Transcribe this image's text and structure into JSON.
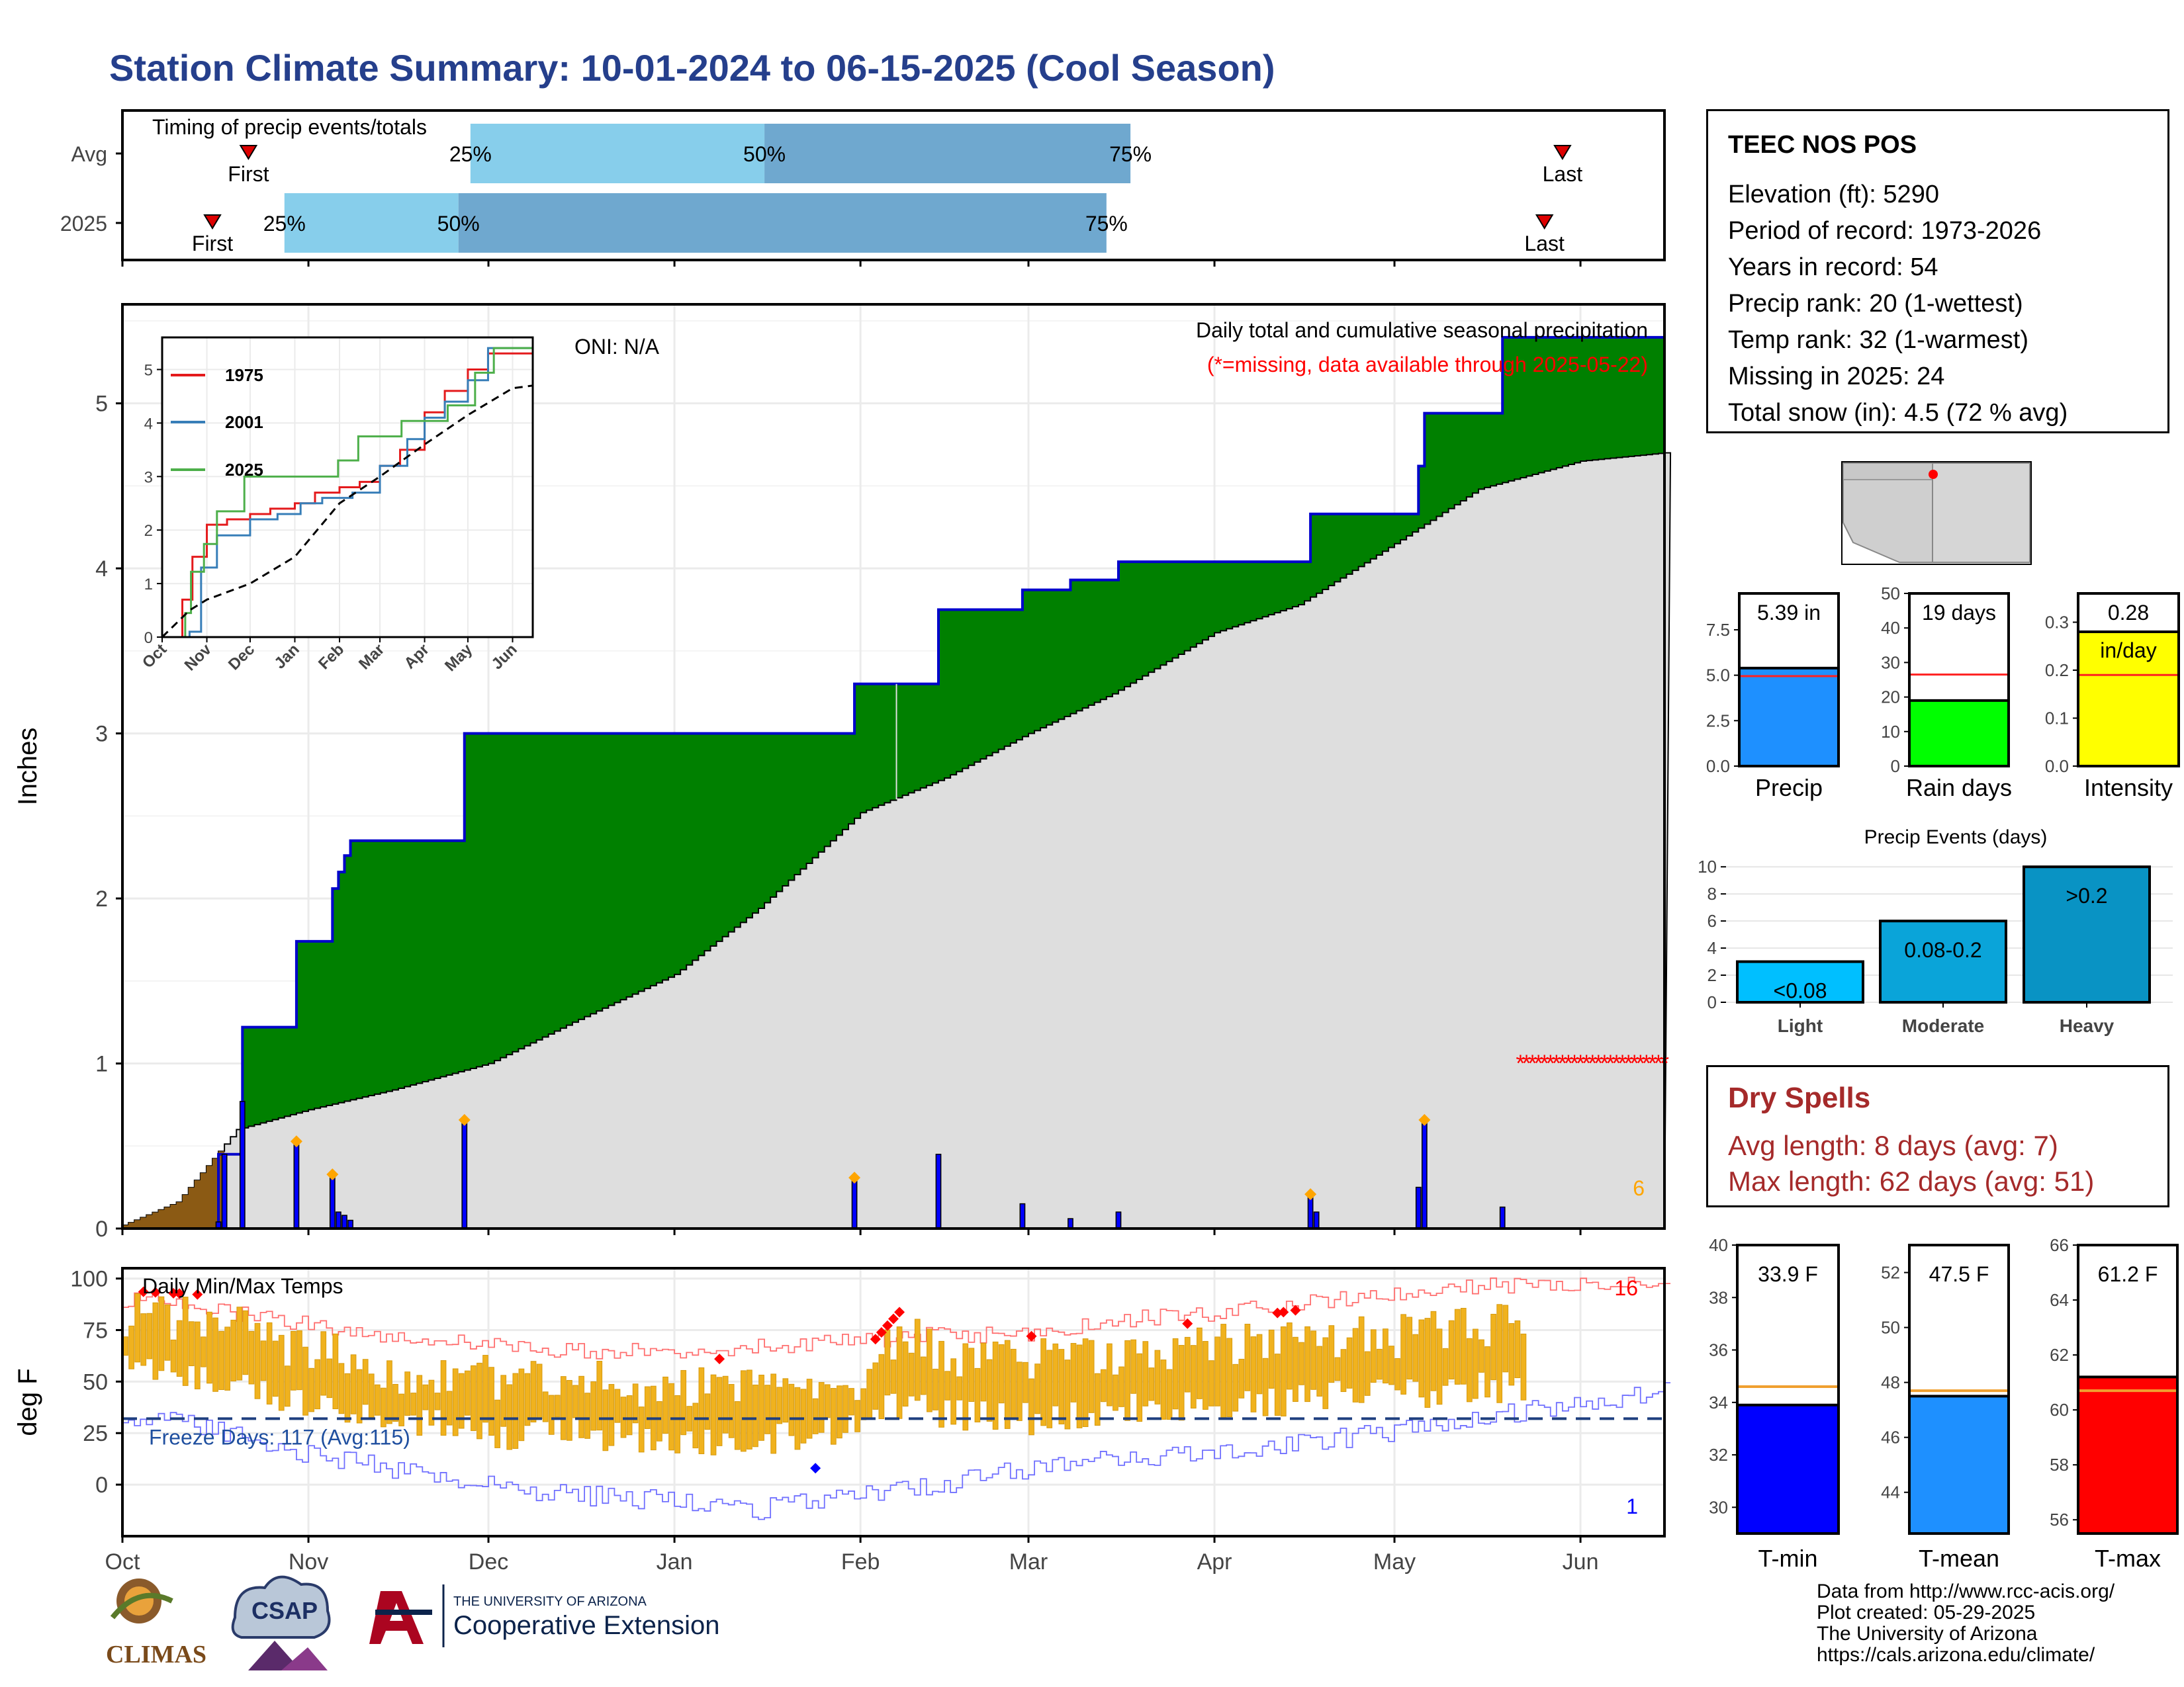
{
  "page": {
    "title": "Station Climate Summary: 10-01-2024 to 06-15-2025 (Cool Season)"
  },
  "station": {
    "name": "TEEC NOS POS",
    "lines": [
      "Elevation (ft): 5290",
      "Period of record: 1973-2026",
      "Years in record: 54",
      "Precip rank: 20 (1-wettest)",
      "Temp rank: 32 (1-warmest)",
      "Missing in 2025: 24",
      "Total snow (in): 4.5 (72 % avg)"
    ]
  },
  "dry_spells": {
    "title": "Dry Spells",
    "avg": "Avg length: 8 days (avg: 7)",
    "max": "Max length: 62 days (avg: 51)"
  },
  "credits": [
    "Data from http://www.rcc-acis.org/",
    "Plot created: 05-29-2025",
    "The University of Arizona",
    "https://cals.arizona.edu/climate/"
  ],
  "logos": {
    "climas": "CLIMAS",
    "csap": "CSAP",
    "ua_top": "THE UNIVERSITY OF ARIZONA",
    "ua_bottom": "Cooperative Extension"
  },
  "colors": {
    "title": "#253f8c",
    "cum_2025_fill": "#008000",
    "cum_avg_fill": "#dedede",
    "daily_bar": "#0000ff",
    "temp_bar": "#f0b21e",
    "dry_spells": "#a52a2a",
    "missing": "#ff0000"
  },
  "chart_data": [
    {
      "type": "bar",
      "id": "timing",
      "title": "Timing of precip events/totals",
      "rows": [
        {
          "label": "Avg",
          "first": "2024-10-22",
          "p25": "2024-11-28",
          "p50": "2025-01-16",
          "p75": "2025-03-18",
          "last": "2025-05-29"
        },
        {
          "label": "2025",
          "first": "2024-10-16",
          "p25": "2024-10-28",
          "p50": "2024-11-26",
          "p75": "2025-03-14",
          "last": "2025-05-26"
        }
      ],
      "markers": {
        "first": "First",
        "last": "Last",
        "p25": "25%",
        "p50": "50%",
        "p75": "75%"
      }
    },
    {
      "type": "area",
      "id": "precip",
      "title": "Daily total and cumulative seasonal precipitation",
      "subtitle": "(*=missing, data available through 2025-05-22)",
      "oni": "ONI: N/A",
      "ylabel": "Inches",
      "ylim": [
        0,
        5.6
      ],
      "yticks": [
        0,
        1,
        2,
        3,
        4,
        5
      ],
      "x_months": [
        "Oct",
        "Nov",
        "Dec",
        "Jan",
        "Feb",
        "Mar",
        "Apr",
        "May",
        "Jun"
      ],
      "x_start": "2024-10-01",
      "x_end": "2025-06-15",
      "cum_2025_steps": [
        [
          "2024-10-01",
          0
        ],
        [
          "2024-10-17",
          0.45
        ],
        [
          "2024-10-21",
          1.22
        ],
        [
          "2024-10-30",
          1.74
        ],
        [
          "2024-11-05",
          2.06
        ],
        [
          "2024-11-06",
          2.16
        ],
        [
          "2024-11-07",
          2.26
        ],
        [
          "2024-11-08",
          2.35
        ],
        [
          "2024-11-27",
          3.0
        ],
        [
          "2025-01-31",
          3.3
        ],
        [
          "2025-02-14",
          3.75
        ],
        [
          "2025-02-28",
          3.87
        ],
        [
          "2025-03-08",
          3.93
        ],
        [
          "2025-03-16",
          4.04
        ],
        [
          "2025-04-17",
          4.33
        ],
        [
          "2025-05-05",
          4.62
        ],
        [
          "2025-05-06",
          4.94
        ],
        [
          "2025-05-19",
          5.4
        ],
        [
          "2025-06-15",
          5.4
        ]
      ],
      "cum_avg": [
        [
          "2024-10-01",
          0.02
        ],
        [
          "2024-10-10",
          0.16
        ],
        [
          "2024-10-20",
          0.6
        ],
        [
          "2024-11-01",
          0.72
        ],
        [
          "2024-11-15",
          0.84
        ],
        [
          "2024-12-01",
          1.0
        ],
        [
          "2024-12-15",
          1.25
        ],
        [
          "2025-01-01",
          1.54
        ],
        [
          "2025-01-15",
          1.94
        ],
        [
          "2025-02-01",
          2.52
        ],
        [
          "2025-02-15",
          2.73
        ],
        [
          "2025-03-01",
          3.0
        ],
        [
          "2025-03-15",
          3.24
        ],
        [
          "2025-04-01",
          3.61
        ],
        [
          "2025-04-15",
          3.78
        ],
        [
          "2025-05-01",
          4.15
        ],
        [
          "2025-05-15",
          4.48
        ],
        [
          "2025-06-01",
          4.65
        ],
        [
          "2025-06-15",
          4.7
        ]
      ],
      "daily": [
        [
          "2024-10-17",
          0.04
        ],
        [
          "2024-10-18",
          0.45
        ],
        [
          "2024-10-21",
          0.77
        ],
        [
          "2024-10-30",
          0.52
        ],
        [
          "2024-11-05",
          0.32
        ],
        [
          "2024-11-06",
          0.1
        ],
        [
          "2024-11-07",
          0.08
        ],
        [
          "2024-11-08",
          0.05
        ],
        [
          "2024-11-27",
          0.65
        ],
        [
          "2025-01-31",
          0.3
        ],
        [
          "2025-02-14",
          0.45
        ],
        [
          "2025-02-28",
          0.15
        ],
        [
          "2025-03-08",
          0.06
        ],
        [
          "2025-03-16",
          0.1
        ],
        [
          "2025-04-17",
          0.2
        ],
        [
          "2025-04-18",
          0.1
        ],
        [
          "2025-05-05",
          0.25
        ],
        [
          "2025-05-06",
          0.65
        ],
        [
          "2025-05-19",
          0.13
        ]
      ],
      "daily_markers": [
        "2024-10-30",
        "2024-11-05",
        "2024-11-27",
        "2025-01-31",
        "2025-04-17",
        "2025-05-06"
      ],
      "missing_range": [
        "2025-05-22",
        "2025-06-15"
      ],
      "missing_count": "6",
      "inset": {
        "series": [
          {
            "name": "1975",
            "color": "#e41a1c",
            "values": [
              [
                "2024-10-01",
                0
              ],
              [
                "2024-10-15",
                0.7
              ],
              [
                "2024-10-22",
                1.5
              ],
              [
                "2024-11-01",
                2.1
              ],
              [
                "2024-11-15",
                2.2
              ],
              [
                "2024-12-01",
                2.3
              ],
              [
                "2024-12-15",
                2.4
              ],
              [
                "2025-01-01",
                2.5
              ],
              [
                "2025-01-15",
                2.7
              ],
              [
                "2025-02-01",
                2.8
              ],
              [
                "2025-02-15",
                2.9
              ],
              [
                "2025-03-01",
                3.2
              ],
              [
                "2025-03-15",
                3.5
              ],
              [
                "2025-04-01",
                4.2
              ],
              [
                "2025-04-15",
                4.6
              ],
              [
                "2025-05-01",
                5.0
              ],
              [
                "2025-05-15",
                5.3
              ],
              [
                "2025-06-15",
                5.5
              ]
            ]
          },
          {
            "name": "2001",
            "color": "#377eb8",
            "values": [
              [
                "2024-10-01",
                0
              ],
              [
                "2024-10-20",
                0.1
              ],
              [
                "2024-10-28",
                1.3
              ],
              [
                "2024-11-08",
                1.9
              ],
              [
                "2024-12-01",
                2.2
              ],
              [
                "2024-12-20",
                2.3
              ],
              [
                "2025-01-05",
                2.5
              ],
              [
                "2025-01-20",
                2.6
              ],
              [
                "2025-02-10",
                2.7
              ],
              [
                "2025-03-01",
                3.2
              ],
              [
                "2025-03-20",
                3.7
              ],
              [
                "2025-04-01",
                4.1
              ],
              [
                "2025-04-15",
                4.4
              ],
              [
                "2025-05-01",
                4.8
              ],
              [
                "2025-05-15",
                5.4
              ],
              [
                "2025-06-15",
                5.5
              ]
            ]
          },
          {
            "name": "2025",
            "color": "#4daf4a",
            "values": [
              [
                "2024-10-01",
                0
              ],
              [
                "2024-10-17",
                0.45
              ],
              [
                "2024-10-21",
                1.22
              ],
              [
                "2024-10-30",
                1.74
              ],
              [
                "2024-11-08",
                2.35
              ],
              [
                "2024-11-27",
                3.0
              ],
              [
                "2025-01-31",
                3.3
              ],
              [
                "2025-02-14",
                3.75
              ],
              [
                "2025-03-16",
                4.04
              ],
              [
                "2025-04-17",
                4.33
              ],
              [
                "2025-05-06",
                4.94
              ],
              [
                "2025-05-19",
                5.4
              ],
              [
                "2025-06-15",
                5.4
              ]
            ]
          }
        ],
        "avg_values": [
          [
            "2024-10-01",
            0
          ],
          [
            "2024-10-20",
            0.5
          ],
          [
            "2024-11-01",
            0.7
          ],
          [
            "2024-12-01",
            1.0
          ],
          [
            "2025-01-01",
            1.5
          ],
          [
            "2025-02-01",
            2.5
          ],
          [
            "2025-03-01",
            3.0
          ],
          [
            "2025-04-01",
            3.6
          ],
          [
            "2025-05-01",
            4.15
          ],
          [
            "2025-06-01",
            4.65
          ],
          [
            "2025-06-15",
            4.7
          ]
        ],
        "ylim": [
          0,
          5.6
        ],
        "yticks": [
          0,
          1,
          2,
          3,
          4,
          5
        ],
        "x_months": [
          "Oct",
          "Nov",
          "Dec",
          "Jan",
          "Feb",
          "Mar",
          "Apr",
          "May",
          "Jun"
        ]
      }
    },
    {
      "type": "bar",
      "id": "temps",
      "title": "Daily Min/Max Temps",
      "ylabel": "deg F",
      "ylim": [
        -25,
        105
      ],
      "yticks": [
        0,
        25,
        50,
        75,
        100
      ],
      "freeze_line": 32,
      "freeze_label": "Freeze Days: 117 (Avg:115)",
      "record_high_count": "16",
      "record_low_count": "1",
      "x_months": [
        "Oct",
        "Nov",
        "Dec",
        "Jan",
        "Feb",
        "Mar",
        "Apr",
        "May",
        "Jun"
      ],
      "data_end": "2025-05-22",
      "max_trend": [
        [
          "2024-10-01",
          82
        ],
        [
          "2024-10-15",
          80
        ],
        [
          "2024-11-01",
          65
        ],
        [
          "2024-11-15",
          55
        ],
        [
          "2024-12-01",
          52
        ],
        [
          "2024-12-15",
          50
        ],
        [
          "2025-01-01",
          48
        ],
        [
          "2025-01-15",
          50
        ],
        [
          "2025-02-01",
          52
        ],
        [
          "2025-02-08",
          75
        ],
        [
          "2025-02-15",
          62
        ],
        [
          "2025-03-01",
          60
        ],
        [
          "2025-03-15",
          64
        ],
        [
          "2025-04-01",
          67
        ],
        [
          "2025-04-15",
          73
        ],
        [
          "2025-05-01",
          72
        ],
        [
          "2025-05-22",
          78
        ]
      ],
      "min_trend": [
        [
          "2024-10-01",
          55
        ],
        [
          "2024-10-15",
          50
        ],
        [
          "2024-11-01",
          38
        ],
        [
          "2024-11-15",
          32
        ],
        [
          "2024-12-01",
          25
        ],
        [
          "2024-12-15",
          25
        ],
        [
          "2025-01-01",
          22
        ],
        [
          "2025-01-15",
          20
        ],
        [
          "2025-02-01",
          30
        ],
        [
          "2025-02-08",
          40
        ],
        [
          "2025-02-15",
          35
        ],
        [
          "2025-03-01",
          32
        ],
        [
          "2025-03-15",
          36
        ],
        [
          "2025-04-01",
          38
        ],
        [
          "2025-04-15",
          42
        ],
        [
          "2025-05-01",
          44
        ],
        [
          "2025-05-22",
          48
        ]
      ],
      "record_max_env": [
        [
          "2024-10-01",
          90
        ],
        [
          "2024-10-15",
          85
        ],
        [
          "2024-11-01",
          78
        ],
        [
          "2024-11-15",
          72
        ],
        [
          "2024-12-01",
          68
        ],
        [
          "2024-12-15",
          65
        ],
        [
          "2025-01-01",
          65
        ],
        [
          "2025-02-01",
          70
        ],
        [
          "2025-02-15",
          73
        ],
        [
          "2025-03-01",
          72
        ],
        [
          "2025-03-15",
          80
        ],
        [
          "2025-04-01",
          83
        ],
        [
          "2025-04-15",
          88
        ],
        [
          "2025-05-01",
          92
        ],
        [
          "2025-05-15",
          96
        ],
        [
          "2025-06-15",
          100
        ]
      ],
      "record_min_env": [
        [
          "2024-10-01",
          33
        ],
        [
          "2024-10-15",
          28
        ],
        [
          "2024-11-01",
          15
        ],
        [
          "2024-11-15",
          8
        ],
        [
          "2024-12-01",
          0
        ],
        [
          "2024-12-15",
          -5
        ],
        [
          "2025-01-01",
          -8
        ],
        [
          "2025-01-15",
          -12
        ],
        [
          "2025-02-01",
          -5
        ],
        [
          "2025-02-15",
          0
        ],
        [
          "2025-03-01",
          8
        ],
        [
          "2025-03-15",
          12
        ],
        [
          "2025-04-01",
          16
        ],
        [
          "2025-04-15",
          20
        ],
        [
          "2025-05-01",
          26
        ],
        [
          "2025-05-15",
          32
        ],
        [
          "2025-06-15",
          45
        ]
      ],
      "record_high_days": [
        "2024-10-04",
        "2024-10-06",
        "2024-10-09",
        "2024-10-10",
        "2024-10-13",
        "2025-01-08",
        "2025-02-03",
        "2025-02-04",
        "2025-02-05",
        "2025-02-06",
        "2025-02-07",
        "2025-03-01",
        "2025-03-27",
        "2025-04-11",
        "2025-04-12",
        "2025-04-14"
      ],
      "record_low_days": [
        "2025-01-24"
      ]
    },
    {
      "type": "bar",
      "id": "totals",
      "panels": [
        {
          "label": "Precip",
          "value_text": "5.39 in",
          "value": 5.39,
          "avg": 4.95,
          "ylim": [
            0,
            9.5
          ],
          "yticks": [
            "0.0",
            "2.5",
            "5.0",
            "7.5"
          ],
          "ytick_vals": [
            0,
            2.5,
            5,
            7.5
          ],
          "color": "#1e90ff"
        },
        {
          "label": "Rain days",
          "value_text": "19 days",
          "value": 19,
          "avg": 26.5,
          "ylim": [
            0,
            50
          ],
          "yticks": [
            "0",
            "10",
            "20",
            "30",
            "40",
            "50"
          ],
          "ytick_vals": [
            0,
            10,
            20,
            30,
            40,
            50
          ],
          "color": "#00ff00"
        },
        {
          "label": "Intensity",
          "value_text": "0.28",
          "unit_text": "in/day",
          "value": 0.28,
          "avg": 0.19,
          "ylim": [
            0,
            0.36
          ],
          "yticks": [
            "0.0",
            "0.1",
            "0.2",
            "0.3"
          ],
          "ytick_vals": [
            0,
            0.1,
            0.2,
            0.3
          ],
          "color": "#ffff00"
        }
      ]
    },
    {
      "type": "bar",
      "id": "events",
      "title": "Precip Events (days)",
      "categories": [
        "Light",
        "Moderate",
        "Heavy"
      ],
      "values": [
        3,
        6,
        10
      ],
      "bar_labels": [
        "<0.08",
        "0.08-0.2",
        ">0.2"
      ],
      "colors": [
        "#00bfff",
        "#0aa4d9",
        "#0993c4"
      ],
      "ylim": [
        0,
        10.5
      ],
      "yticks": [
        0,
        2,
        4,
        6,
        8,
        10
      ]
    },
    {
      "type": "bar",
      "id": "tempbars",
      "panels": [
        {
          "label": "T-min",
          "value_text": "33.9 F",
          "value": 33.9,
          "avg": 34.6,
          "ylim": [
            29,
            40
          ],
          "yticks": [
            30,
            32,
            34,
            36,
            38,
            40
          ],
          "color": "#0000ff"
        },
        {
          "label": "T-mean",
          "value_text": "47.5 F",
          "value": 47.5,
          "avg": 47.7,
          "ylim": [
            42.5,
            53
          ],
          "yticks": [
            44,
            46,
            48,
            50,
            52
          ],
          "color": "#1e90ff"
        },
        {
          "label": "T-max",
          "value_text": "61.2 F",
          "value": 61.2,
          "avg": 60.7,
          "ylim": [
            55.5,
            66
          ],
          "yticks": [
            56,
            58,
            60,
            62,
            64,
            66
          ],
          "color": "#ff0000"
        }
      ]
    }
  ]
}
